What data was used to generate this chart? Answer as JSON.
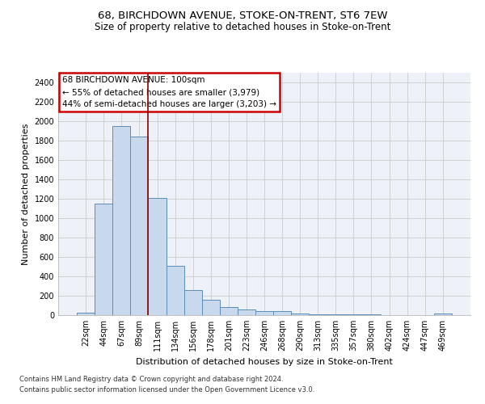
{
  "title1": "68, BIRCHDOWN AVENUE, STOKE-ON-TRENT, ST6 7EW",
  "title2": "Size of property relative to detached houses in Stoke-on-Trent",
  "xlabel": "Distribution of detached houses by size in Stoke-on-Trent",
  "ylabel": "Number of detached properties",
  "categories": [
    "22sqm",
    "44sqm",
    "67sqm",
    "89sqm",
    "111sqm",
    "134sqm",
    "156sqm",
    "178sqm",
    "201sqm",
    "223sqm",
    "246sqm",
    "268sqm",
    "290sqm",
    "313sqm",
    "335sqm",
    "357sqm",
    "380sqm",
    "402sqm",
    "424sqm",
    "447sqm",
    "469sqm"
  ],
  "values": [
    25,
    1150,
    1950,
    1840,
    1210,
    510,
    260,
    155,
    80,
    55,
    38,
    38,
    18,
    8,
    5,
    5,
    5,
    3,
    3,
    3,
    18
  ],
  "bar_color": "#c9d9ed",
  "bar_edge_color": "#5b8db8",
  "grid_color": "#d0d0d0",
  "vline_x": 3.5,
  "vline_color": "#8b0000",
  "annotation_text": "68 BIRCHDOWN AVENUE: 100sqm\n← 55% of detached houses are smaller (3,979)\n44% of semi-detached houses are larger (3,203) →",
  "annotation_box_color": "#ffffff",
  "annotation_border_color": "#cc0000",
  "ylim": [
    0,
    2500
  ],
  "yticks": [
    0,
    200,
    400,
    600,
    800,
    1000,
    1200,
    1400,
    1600,
    1800,
    2000,
    2200,
    2400
  ],
  "footer1": "Contains HM Land Registry data © Crown copyright and database right 2024.",
  "footer2": "Contains public sector information licensed under the Open Government Licence v3.0.",
  "bg_color": "#eef2f8",
  "title_fontsize": 9.5,
  "subtitle_fontsize": 8.5,
  "annotation_fontsize": 7.5,
  "axis_label_fontsize": 8,
  "tick_fontsize": 7,
  "footer_fontsize": 6
}
